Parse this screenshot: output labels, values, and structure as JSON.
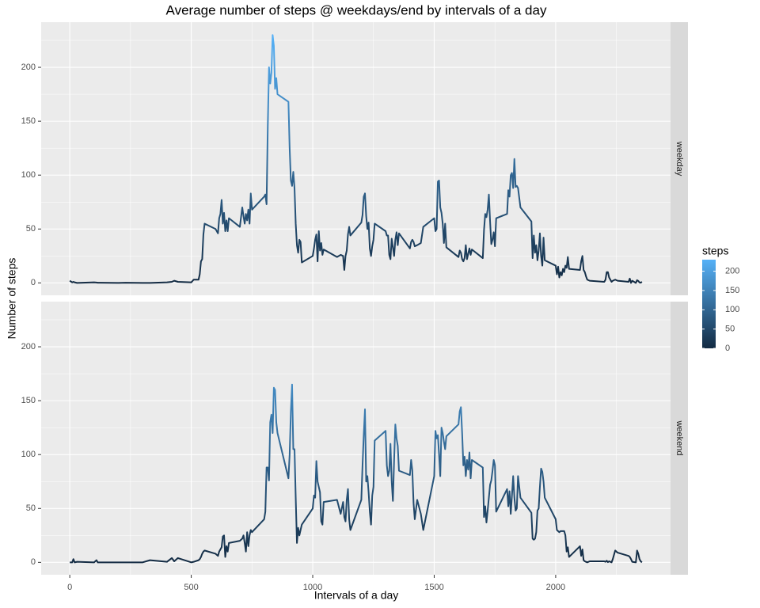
{
  "chart_data": {
    "type": "line",
    "title": "Average number of steps @ weekdays/end by intervals of a day",
    "x_label": "Intervals of a day",
    "y_label": "Number of steps",
    "x": [
      0,
      10,
      15,
      20,
      30,
      100,
      110,
      115,
      200,
      230,
      300,
      330,
      400,
      420,
      430,
      445,
      500,
      510,
      530,
      535,
      540,
      545,
      550,
      555,
      600,
      610,
      615,
      620,
      625,
      630,
      635,
      640,
      645,
      650,
      655,
      700,
      710,
      715,
      720,
      725,
      730,
      735,
      740,
      745,
      750,
      800,
      805,
      810,
      815,
      820,
      825,
      830,
      835,
      840,
      845,
      850,
      855,
      900,
      905,
      910,
      915,
      920,
      925,
      930,
      935,
      940,
      945,
      950,
      955,
      1000,
      1005,
      1010,
      1015,
      1020,
      1025,
      1030,
      1035,
      1040,
      1045,
      1100,
      1115,
      1125,
      1130,
      1135,
      1140,
      1145,
      1150,
      1155,
      1200,
      1205,
      1210,
      1215,
      1220,
      1225,
      1230,
      1235,
      1240,
      1245,
      1250,
      1255,
      1300,
      1305,
      1310,
      1315,
      1320,
      1325,
      1330,
      1335,
      1340,
      1345,
      1350,
      1355,
      1400,
      1405,
      1410,
      1415,
      1420,
      1430,
      1445,
      1455,
      1500,
      1505,
      1510,
      1515,
      1520,
      1525,
      1530,
      1535,
      1540,
      1545,
      1550,
      1600,
      1605,
      1610,
      1615,
      1620,
      1625,
      1630,
      1635,
      1640,
      1645,
      1650,
      1655,
      1700,
      1705,
      1710,
      1715,
      1720,
      1725,
      1730,
      1735,
      1740,
      1745,
      1750,
      1755,
      1800,
      1805,
      1810,
      1815,
      1820,
      1825,
      1830,
      1835,
      1840,
      1845,
      1855,
      1900,
      1905,
      1910,
      1915,
      1920,
      1925,
      1930,
      1935,
      1940,
      1945,
      1950,
      1955,
      2000,
      2005,
      2010,
      2015,
      2020,
      2025,
      2030,
      2035,
      2040,
      2045,
      2050,
      2055,
      2100,
      2105,
      2110,
      2115,
      2120,
      2125,
      2130,
      2140,
      2200,
      2205,
      2210,
      2215,
      2220,
      2230,
      2235,
      2245,
      2255,
      2300,
      2305,
      2310,
      2315,
      2330,
      2335,
      2340,
      2345,
      2350,
      2355
    ],
    "series": [
      {
        "name": "weekday",
        "values": [
          2,
          0.5,
          1,
          0.5,
          0,
          0.5,
          0.3,
          0.2,
          0,
          0.2,
          0,
          0,
          0.5,
          1,
          2,
          1,
          0.5,
          3,
          3,
          8,
          20,
          22,
          45,
          55,
          50,
          46,
          60,
          64,
          77,
          55,
          65,
          48,
          58,
          48,
          60,
          52,
          70,
          62,
          55,
          64,
          58,
          68,
          55,
          83,
          68,
          80,
          82,
          73,
          145,
          200,
          185,
          195,
          230,
          220,
          180,
          190,
          175,
          168,
          125,
          95,
          90,
          103,
          88,
          55,
          35,
          28,
          40,
          38,
          19,
          25,
          32,
          40,
          45,
          20,
          48,
          30,
          37,
          26,
          31,
          24,
          26,
          25,
          12,
          25,
          30,
          45,
          52,
          44,
          56,
          63,
          80,
          83,
          62,
          50,
          56,
          32,
          25,
          34,
          40,
          55,
          48,
          44,
          44,
          26,
          22,
          41,
          33,
          25,
          40,
          47,
          35,
          46,
          32,
          38,
          40,
          38,
          34,
          35,
          37,
          52,
          60,
          48,
          50,
          94,
          95,
          70,
          65,
          55,
          37,
          55,
          33,
          24,
          30,
          28,
          22,
          20,
          23,
          35,
          22,
          27,
          32,
          26,
          31,
          23,
          49,
          64,
          61,
          68,
          82,
          57,
          36,
          40,
          47,
          34,
          60,
          64,
          86,
          80,
          100,
          102,
          88,
          115,
          89,
          90,
          88,
          70,
          57,
          23,
          44,
          28,
          35,
          21,
          30,
          46,
          25,
          16,
          42,
          21,
          16,
          8,
          15,
          5,
          10,
          7,
          13,
          10,
          16,
          14,
          24,
          13,
          12,
          20,
          25,
          12,
          10,
          6,
          3,
          2,
          1,
          3,
          10,
          10,
          5,
          1,
          2,
          3,
          2,
          1,
          4,
          0,
          2,
          0,
          2.5,
          1.8,
          0.4,
          0.2,
          1
        ]
      },
      {
        "name": "weekend",
        "values": [
          0,
          0,
          3,
          0,
          0.5,
          0,
          2,
          0,
          0,
          0,
          0,
          2,
          0.5,
          4,
          1,
          4,
          0,
          0.5,
          2,
          3,
          5,
          8,
          10,
          11,
          8,
          6,
          10,
          12,
          14,
          24,
          25,
          5,
          15,
          10,
          18,
          20,
          22,
          25,
          18,
          10,
          28,
          15,
          25,
          30,
          28,
          40,
          47,
          88,
          88,
          76,
          130,
          137,
          120,
          162,
          160,
          130,
          120,
          78,
          100,
          140,
          165,
          105,
          105,
          60,
          18,
          32,
          25,
          30,
          35,
          50,
          62,
          60,
          94,
          75,
          70,
          65,
          38,
          35,
          56,
          58,
          45,
          56,
          42,
          38,
          58,
          68,
          40,
          30,
          58,
          90,
          118,
          142,
          75,
          80,
          65,
          47,
          35,
          62,
          70,
          113,
          122,
          90,
          80,
          85,
          110,
          75,
          57,
          95,
          128,
          115,
          108,
          85,
          81,
          95,
          85,
          55,
          40,
          58,
          45,
          30,
          80,
          122,
          115,
          118,
          100,
          80,
          125,
          120,
          112,
          105,
          117,
          128,
          140,
          144,
          120,
          90,
          98,
          80,
          95,
          86,
          102,
          78,
          95,
          88,
          42,
          52,
          37,
          48,
          60,
          72,
          76,
          85,
          95,
          90,
          47,
          68,
          52,
          66,
          45,
          62,
          80,
          60,
          48,
          50,
          80,
          60,
          46,
          22,
          21,
          22,
          28,
          48,
          50,
          70,
          87,
          84,
          75,
          60,
          40,
          30,
          29,
          28,
          29,
          29,
          29,
          29,
          25,
          10,
          14,
          5,
          15,
          6,
          12,
          2,
          1,
          0.5,
          0,
          1,
          1,
          0.5,
          1.5,
          0.2,
          1,
          0,
          3,
          11,
          9,
          6,
          5,
          3,
          0.5,
          0,
          11,
          8,
          3,
          1,
          0
        ]
      }
    ],
    "xlim": [
      -117.75,
      2472.75
    ],
    "xticks": [
      0,
      500,
      1000,
      1500,
      2000
    ],
    "x_minor_ticks": [
      250,
      750,
      1250,
      1750,
      2250
    ],
    "ylim": [
      -11.5,
      241.9
    ],
    "yticks": [
      0,
      50,
      100,
      150,
      200
    ],
    "y_minor_ticks": [
      25,
      75,
      125,
      175,
      225
    ],
    "grid": true,
    "color_scale": {
      "title": "steps",
      "low": "#132B43",
      "high": "#56B1F7",
      "ticks": [
        0,
        50,
        100,
        150,
        200
      ]
    }
  }
}
